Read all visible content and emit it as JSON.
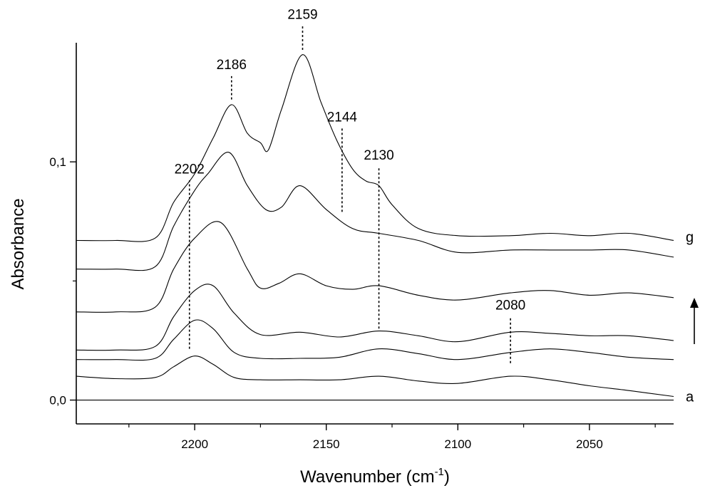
{
  "chart_data": {
    "type": "line",
    "xlabel": "Wavenumber (cm",
    "xlabel_sup": "-1",
    "xlabel_close": ")",
    "ylabel": "Absorbance",
    "xlim": [
      2245,
      2018
    ],
    "ylim": [
      -0.01,
      0.15
    ],
    "x_reversed": true,
    "x_ticks": [
      2200,
      2150,
      2100,
      2050
    ],
    "x_minor_ticks": [
      2225,
      2175,
      2125,
      2075,
      2025
    ],
    "y_ticks": [
      {
        "value": 0.0,
        "label": "0,0"
      },
      {
        "value": 0.1,
        "label": "0,1"
      }
    ],
    "y_minor_ticks": [
      0.05
    ],
    "trace_labels": [
      {
        "text": "a",
        "series": 0
      },
      {
        "text": "g",
        "series": 6
      }
    ],
    "arrow_direction": "up",
    "peak_annotations": [
      {
        "label": "2202",
        "x": 2202,
        "y_from": 0.0215,
        "y_to": 0.0922
      },
      {
        "label": "2186",
        "x": 2186,
        "y_from": 0.1262,
        "y_to": 0.136
      },
      {
        "label": "2159",
        "x": 2159,
        "y_from": 0.147,
        "y_to": 0.157
      },
      {
        "label": "2144",
        "x": 2144,
        "y_from": 0.079,
        "y_to": 0.114
      },
      {
        "label": "2130",
        "x": 2130,
        "y_from": 0.03,
        "y_to": 0.098
      },
      {
        "label": "2080",
        "x": 2080,
        "y_from": 0.0155,
        "y_to": 0.035
      }
    ],
    "series": [
      {
        "x": [
          2245,
          2230,
          2215,
          2208,
          2200,
          2193,
          2185,
          2175,
          2160,
          2145,
          2130,
          2115,
          2100,
          2080,
          2065,
          2050,
          2035,
          2018
        ],
        "y": [
          0.0,
          0.0,
          0.0,
          0.0,
          0.0,
          0.0,
          0.0,
          0.0,
          0.0,
          0.0,
          0.0,
          0.0,
          0.0,
          0.0,
          0.0,
          0.0,
          0.0,
          0.0
        ]
      },
      {
        "x": [
          2245,
          2230,
          2215,
          2208,
          2200,
          2193,
          2185,
          2175,
          2160,
          2145,
          2130,
          2115,
          2100,
          2080,
          2065,
          2050,
          2035,
          2018
        ],
        "y": [
          0.01,
          0.009,
          0.0095,
          0.014,
          0.0185,
          0.015,
          0.0095,
          0.0085,
          0.0085,
          0.0085,
          0.01,
          0.008,
          0.007,
          0.01,
          0.0085,
          0.006,
          0.004,
          0.0015
        ]
      },
      {
        "x": [
          2245,
          2230,
          2215,
          2208,
          2200,
          2193,
          2185,
          2175,
          2160,
          2145,
          2130,
          2115,
          2100,
          2080,
          2065,
          2050,
          2035,
          2018
        ],
        "y": [
          0.017,
          0.017,
          0.0175,
          0.0255,
          0.0335,
          0.03,
          0.02,
          0.0175,
          0.0175,
          0.018,
          0.0215,
          0.0195,
          0.017,
          0.02,
          0.0215,
          0.02,
          0.018,
          0.017
        ]
      },
      {
        "x": [
          2245,
          2230,
          2215,
          2208,
          2200,
          2193,
          2185,
          2175,
          2160,
          2145,
          2130,
          2115,
          2100,
          2080,
          2065,
          2050,
          2035,
          2018
        ],
        "y": [
          0.021,
          0.021,
          0.0225,
          0.035,
          0.046,
          0.048,
          0.0365,
          0.0275,
          0.0285,
          0.0265,
          0.029,
          0.027,
          0.0245,
          0.0285,
          0.028,
          0.027,
          0.027,
          0.025
        ]
      },
      {
        "x": [
          2245,
          2230,
          2215,
          2208,
          2200,
          2190,
          2180,
          2175,
          2168,
          2160,
          2150,
          2140,
          2130,
          2115,
          2100,
          2080,
          2065,
          2050,
          2035,
          2018
        ],
        "y": [
          0.037,
          0.037,
          0.039,
          0.055,
          0.068,
          0.0745,
          0.055,
          0.047,
          0.049,
          0.053,
          0.048,
          0.0465,
          0.048,
          0.044,
          0.042,
          0.045,
          0.046,
          0.044,
          0.045,
          0.043
        ]
      },
      {
        "x": [
          2245,
          2230,
          2215,
          2208,
          2200,
          2195,
          2187,
          2180,
          2173,
          2167,
          2160,
          2150,
          2140,
          2130,
          2115,
          2100,
          2080,
          2065,
          2050,
          2035,
          2018
        ],
        "y": [
          0.055,
          0.055,
          0.056,
          0.073,
          0.088,
          0.095,
          0.104,
          0.09,
          0.08,
          0.081,
          0.09,
          0.08,
          0.072,
          0.07,
          0.067,
          0.062,
          0.063,
          0.063,
          0.063,
          0.063,
          0.06
        ]
      },
      {
        "x": [
          2245,
          2230,
          2215,
          2208,
          2200,
          2193,
          2186,
          2180,
          2175,
          2172,
          2167,
          2159,
          2152,
          2146,
          2140,
          2135,
          2130,
          2125,
          2115,
          2100,
          2080,
          2065,
          2050,
          2035,
          2018
        ],
        "y": [
          0.067,
          0.067,
          0.068,
          0.083,
          0.095,
          0.11,
          0.124,
          0.112,
          0.108,
          0.105,
          0.122,
          0.145,
          0.125,
          0.109,
          0.097,
          0.092,
          0.09,
          0.082,
          0.072,
          0.069,
          0.069,
          0.07,
          0.069,
          0.07,
          0.067
        ]
      }
    ]
  }
}
